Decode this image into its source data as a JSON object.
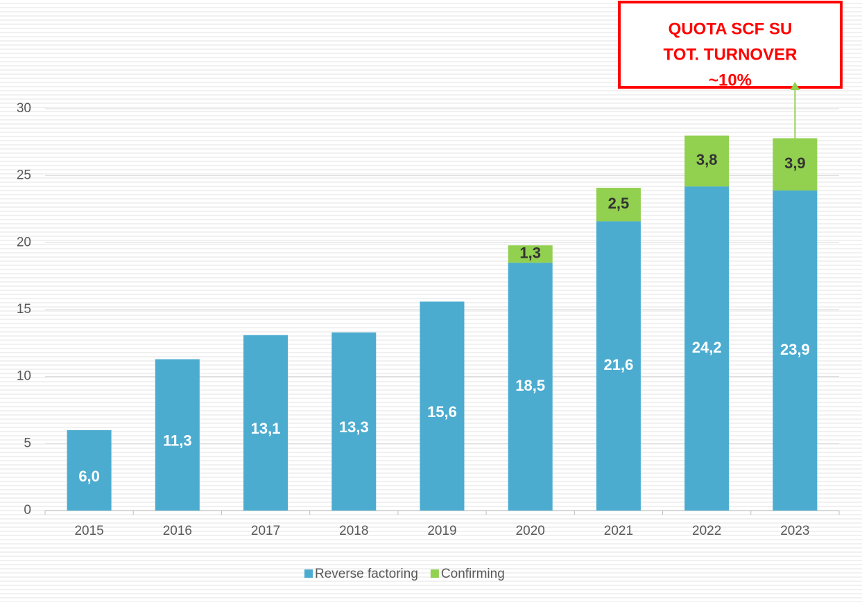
{
  "chart_data": {
    "type": "stacked_bar",
    "categories": [
      "2015",
      "2016",
      "2017",
      "2018",
      "2019",
      "2020",
      "2021",
      "2022",
      "2023"
    ],
    "series": [
      {
        "name": "Reverse factoring",
        "color": "#4bacd0",
        "values": [
          6.0,
          11.3,
          13.1,
          13.3,
          15.6,
          18.5,
          21.6,
          24.2,
          23.9
        ],
        "value_labels": [
          "6,0",
          "11,3",
          "13,1",
          "13,3",
          "15,6",
          "18,5",
          "21,6",
          "24,2",
          "23,9"
        ]
      },
      {
        "name": "Confirming",
        "color": "#92d050",
        "values": [
          null,
          null,
          null,
          null,
          null,
          1.3,
          2.5,
          3.8,
          3.9
        ],
        "value_labels": [
          null,
          null,
          null,
          null,
          null,
          "1,3",
          "2,5",
          "3,8",
          "3,9"
        ]
      }
    ],
    "ylim": [
      0,
      30
    ],
    "yticks": [
      0,
      5,
      10,
      15,
      20,
      25,
      30
    ],
    "grid": true,
    "legend": "bottom",
    "annotation": {
      "lines": [
        "QUOTA SCF SU",
        "TOT. TURNOVER",
        "~10%"
      ]
    }
  }
}
